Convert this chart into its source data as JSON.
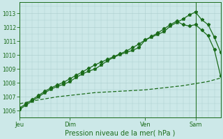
{
  "background_color": "#cce8e8",
  "grid_color": "#aacccc",
  "line_color": "#1a6b1a",
  "xlabel": "Pression niveau de la mer( hPa )",
  "ylabel_ticks": [
    1006,
    1007,
    1008,
    1009,
    1010,
    1011,
    1012,
    1013
  ],
  "ylim": [
    1005.5,
    1013.8
  ],
  "xlim": [
    0,
    96
  ],
  "day_ticks": [
    0,
    24,
    60,
    84
  ],
  "day_labels": [
    "Jeu",
    "Dim",
    "Ven",
    "Sam"
  ],
  "vline_x": 84,
  "line1_x": [
    0,
    3,
    6,
    9,
    12,
    15,
    18,
    21,
    24,
    27,
    30,
    33,
    36,
    39,
    42,
    45,
    48,
    51,
    54,
    57,
    60,
    63,
    66,
    69,
    72,
    75,
    78,
    81,
    84,
    87,
    90,
    93,
    96
  ],
  "line1_y": [
    1006.1,
    1006.4,
    1006.7,
    1007.0,
    1007.3,
    1007.55,
    1007.75,
    1007.9,
    1008.1,
    1008.4,
    1008.65,
    1008.85,
    1009.0,
    1009.3,
    1009.6,
    1009.85,
    1010.05,
    1010.2,
    1010.35,
    1010.55,
    1011.1,
    1011.3,
    1011.5,
    1011.7,
    1012.1,
    1012.35,
    1012.6,
    1012.9,
    1013.1,
    1012.55,
    1012.2,
    1011.3,
    1010.2
  ],
  "line2_x": [
    0,
    3,
    6,
    9,
    12,
    15,
    18,
    21,
    24,
    27,
    30,
    33,
    36,
    39,
    42,
    45,
    48,
    51,
    54,
    57,
    60,
    63,
    66,
    69,
    72,
    75,
    78,
    81,
    84,
    87,
    90,
    93,
    96
  ],
  "line2_y": [
    1006.2,
    1006.5,
    1006.8,
    1007.1,
    1007.4,
    1007.65,
    1007.85,
    1008.05,
    1008.3,
    1008.55,
    1008.8,
    1009.05,
    1009.3,
    1009.5,
    1009.7,
    1009.9,
    1010.1,
    1010.3,
    1010.55,
    1010.8,
    1011.1,
    1011.35,
    1011.6,
    1011.9,
    1012.2,
    1012.45,
    1012.2,
    1012.1,
    1012.2,
    1011.8,
    1011.4,
    1010.4,
    1008.5
  ],
  "line3_x": [
    0,
    6,
    12,
    18,
    24,
    30,
    36,
    42,
    48,
    54,
    60,
    66,
    72,
    78,
    84,
    90,
    96
  ],
  "line3_y": [
    1006.5,
    1006.7,
    1006.85,
    1007.0,
    1007.1,
    1007.2,
    1007.3,
    1007.35,
    1007.4,
    1007.45,
    1007.5,
    1007.6,
    1007.7,
    1007.8,
    1007.95,
    1008.1,
    1008.35
  ]
}
